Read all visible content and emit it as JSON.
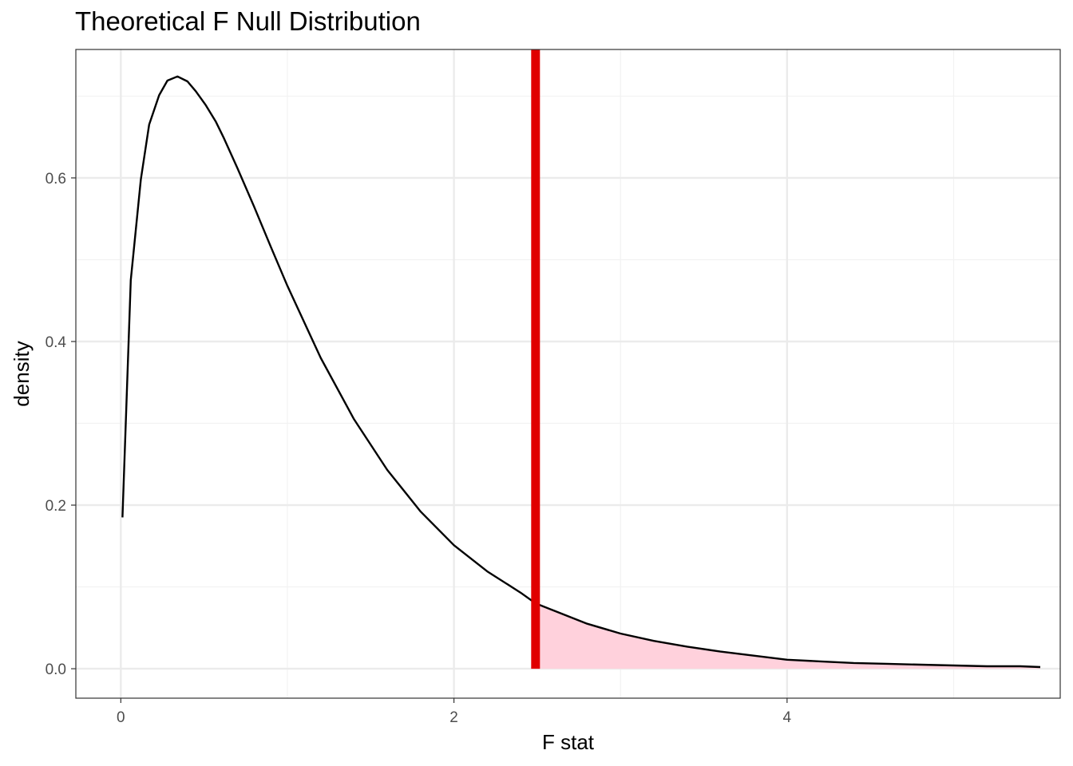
{
  "chart_data": {
    "type": "area",
    "title": "Theoretical F Null Distribution",
    "xlabel": "F stat",
    "ylabel": "density",
    "xlim": [
      -0.27,
      5.64
    ],
    "ylim": [
      -0.036,
      0.757
    ],
    "x_ticks": [
      0,
      2,
      4
    ],
    "x_tick_labels": [
      "0",
      "2",
      "4"
    ],
    "y_ticks": [
      0.0,
      0.2,
      0.4,
      0.6
    ],
    "y_tick_labels": [
      "0.0",
      "0.2",
      "0.4",
      "0.6"
    ],
    "grid": true,
    "series": [
      {
        "x": [
          0.01,
          0.06,
          0.12,
          0.17,
          0.23,
          0.28,
          0.34,
          0.4,
          0.45,
          0.51,
          0.57,
          0.62,
          0.7,
          0.8,
          0.9,
          1.0,
          1.2,
          1.4,
          1.6,
          1.8,
          2.0,
          2.2,
          2.4,
          2.49,
          2.6,
          2.8,
          3.0,
          3.2,
          3.4,
          3.6,
          3.8,
          4.0,
          4.2,
          4.4,
          4.6,
          4.8,
          5.0,
          5.2,
          5.4,
          5.52
        ],
        "y": [
          0.185,
          0.475,
          0.598,
          0.665,
          0.701,
          0.719,
          0.724,
          0.718,
          0.706,
          0.689,
          0.669,
          0.648,
          0.612,
          0.565,
          0.516,
          0.468,
          0.38,
          0.305,
          0.243,
          0.192,
          0.151,
          0.119,
          0.093,
          0.08,
          0.071,
          0.055,
          0.043,
          0.034,
          0.027,
          0.021,
          0.016,
          0.011,
          0.009,
          0.007,
          0.006,
          0.005,
          0.004,
          0.003,
          0.003,
          0.002
        ]
      }
    ],
    "observed_stat": 2.49,
    "colors": {
      "curve": "#000000",
      "shade": "#ffd1dc",
      "stat_line": "#e00000",
      "grid_major": "#ebebeb",
      "grid_minor": "#f2f2f2",
      "panel_border": "#333333"
    }
  }
}
